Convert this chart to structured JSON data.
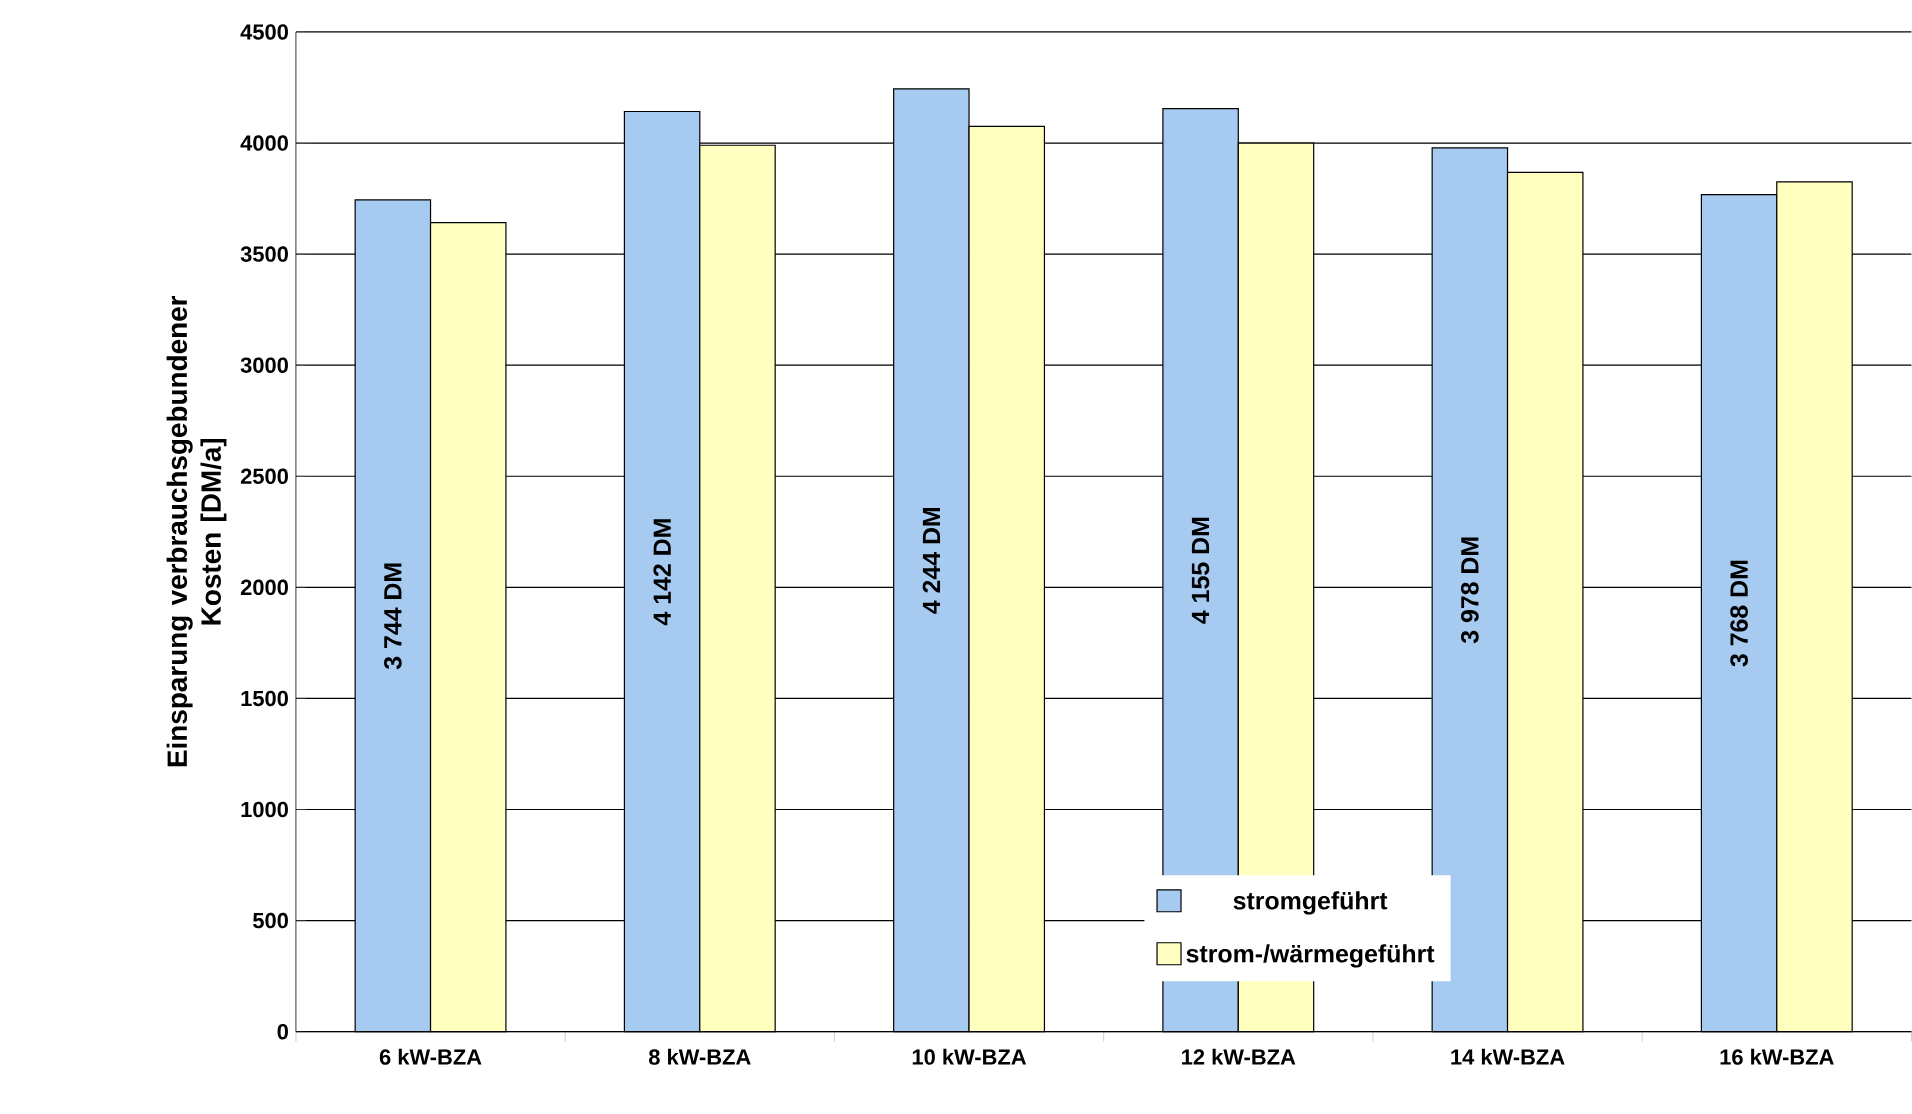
{
  "chart_data": {
    "type": "bar",
    "ylabel": "Einsparung verbrauchsgebundener Kosten [DM/a]",
    "categories": [
      "6 kW-BZA",
      "8 kW-BZA",
      "10 kW-BZA",
      "12 kW-BZA",
      "14 kW-BZA",
      "16 kW-BZA"
    ],
    "series": [
      {
        "name": "stromgeführt",
        "color": "#a6caf0",
        "values": [
          3744,
          4142,
          4244,
          4155,
          3978,
          3768
        ],
        "value_labels": [
          "3 744 DM",
          "4 142 DM",
          "4 244 DM",
          "4 155 DM",
          "3 978 DM",
          "3 768 DM"
        ]
      },
      {
        "name": "strom-/wärmegeführt",
        "color": "#ffffc0",
        "values": [
          3642,
          3990,
          4075,
          4000,
          3868,
          3825
        ]
      }
    ],
    "ylim": [
      0,
      4500
    ],
    "yticks": [
      0,
      500,
      1000,
      1500,
      2000,
      2500,
      3000,
      3500,
      4000,
      4500
    ],
    "grid": "y",
    "legend": "bottom"
  }
}
